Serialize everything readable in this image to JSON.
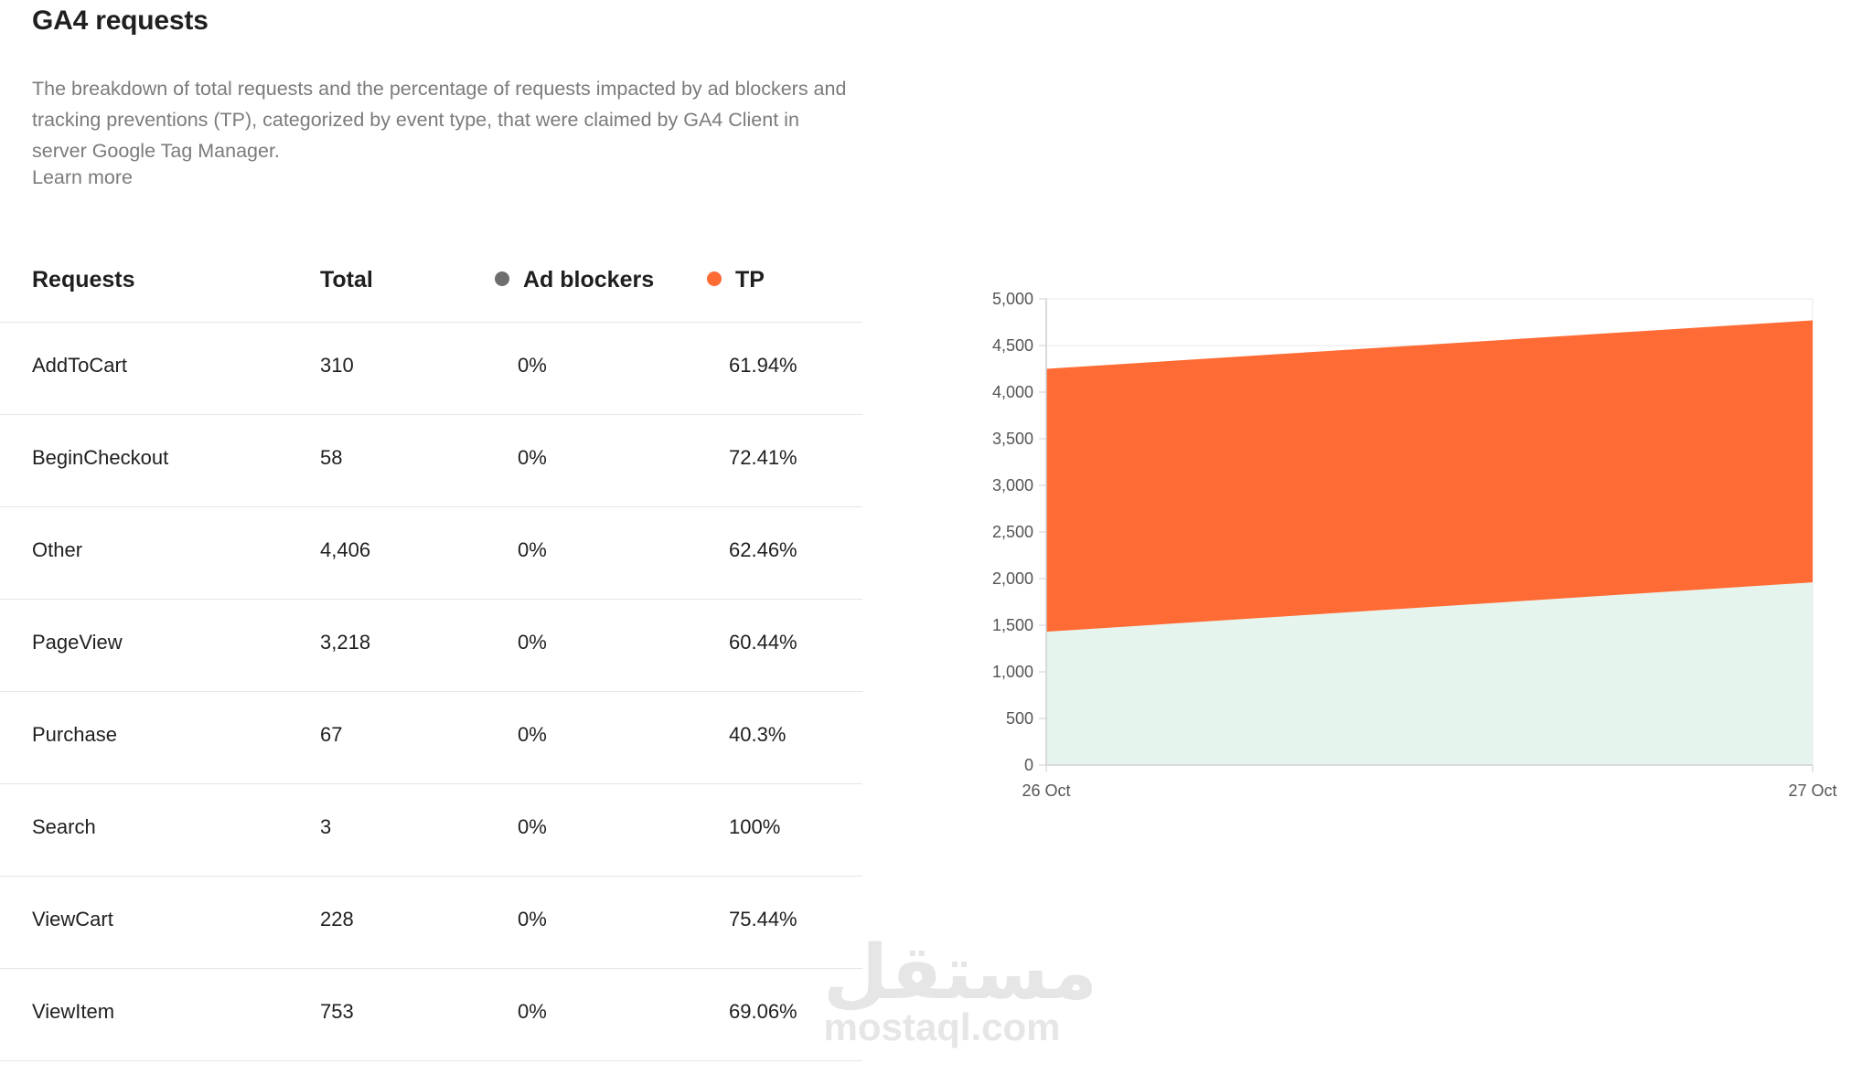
{
  "header": {
    "title": "GA4 requests",
    "description": "The breakdown of total requests and the percentage of requests impacted by ad blockers and tracking preventions (TP), categorized by event type, that were claimed by GA4 Client in server Google Tag Manager.",
    "learn_more": "Learn more"
  },
  "table": {
    "columns": {
      "requests": "Requests",
      "total": "Total",
      "ad_blockers": "Ad blockers",
      "tp": "TP"
    },
    "rows": [
      {
        "name": "AddToCart",
        "total": "310",
        "ad_blockers": "0%",
        "tp": "61.94%"
      },
      {
        "name": "BeginCheckout",
        "total": "58",
        "ad_blockers": "0%",
        "tp": "72.41%"
      },
      {
        "name": "Other",
        "total": "4,406",
        "ad_blockers": "0%",
        "tp": "62.46%"
      },
      {
        "name": "PageView",
        "total": "3,218",
        "ad_blockers": "0%",
        "tp": "60.44%"
      },
      {
        "name": "Purchase",
        "total": "67",
        "ad_blockers": "0%",
        "tp": "40.3%"
      },
      {
        "name": "Search",
        "total": "3",
        "ad_blockers": "0%",
        "tp": "100%"
      },
      {
        "name": "ViewCart",
        "total": "228",
        "ad_blockers": "0%",
        "tp": "75.44%"
      },
      {
        "name": "ViewItem",
        "total": "753",
        "ad_blockers": "0%",
        "tp": "69.06%"
      }
    ]
  },
  "colors": {
    "ad_blockers": "#6d6d6d",
    "tp": "#ff6b35",
    "base_area": "#e6f4ee",
    "grid": "#e8e8e8",
    "axis_text": "#555555"
  },
  "chart_data": {
    "type": "area",
    "stacked": true,
    "categories": [
      "26 Oct",
      "27 Oct"
    ],
    "ylim": [
      0,
      5000
    ],
    "yticks": [
      0,
      500,
      1000,
      1500,
      2000,
      2500,
      3000,
      3500,
      4000,
      4500,
      5000
    ],
    "series": [
      {
        "values": [
          1430,
          1960
        ],
        "color": "#e6f4ee"
      },
      {
        "values": [
          2820,
          2810
        ],
        "color": "#ff6b35"
      }
    ],
    "grid": true,
    "legend": "none"
  },
  "watermark": {
    "arabic": "مستقل",
    "latin": "mostaql.com"
  }
}
